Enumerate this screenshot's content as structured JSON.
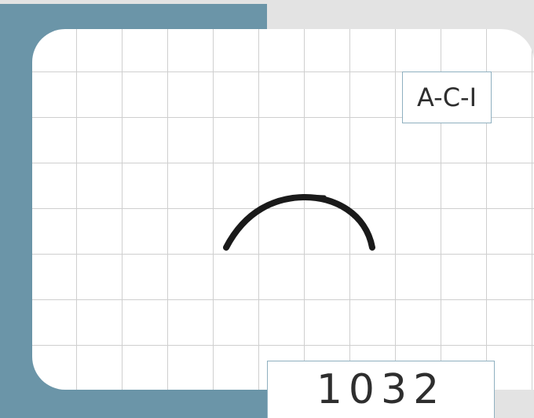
{
  "labels": {
    "code": "A-C-I",
    "number": "1032"
  },
  "colors": {
    "background": "#e3e3e3",
    "accent_blue": "#6b95a8",
    "grid": "#cfcfcf",
    "card": "#ffffff",
    "stroke": "#1a1a1a"
  }
}
